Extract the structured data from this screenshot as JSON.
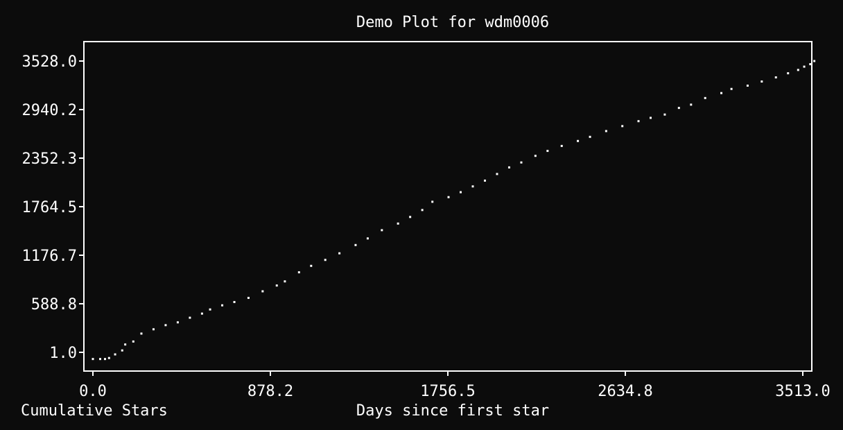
{
  "chart_data": {
    "type": "scatter",
    "title": "Demo Plot for wdm0006",
    "xlabel": "Days since first star",
    "ylabel": "Cumulative Stars",
    "x_ticks": [
      "0.0",
      "878.2",
      "1756.5",
      "2634.8",
      "3513.0"
    ],
    "y_ticks": [
      "1.0",
      "588.8",
      "1176.7",
      "1764.5",
      "2352.3",
      "2940.2",
      "3528.0"
    ],
    "xlim": [
      0,
      3513
    ],
    "ylim": [
      1,
      3528
    ],
    "grid": false,
    "points": [
      [
        0,
        -80
      ],
      [
        36,
        -80
      ],
      [
        60,
        -80
      ],
      [
        80,
        -68
      ],
      [
        110,
        -24
      ],
      [
        145,
        24
      ],
      [
        160,
        96
      ],
      [
        200,
        132
      ],
      [
        240,
        228
      ],
      [
        300,
        280
      ],
      [
        360,
        330
      ],
      [
        420,
        364
      ],
      [
        480,
        420
      ],
      [
        540,
        470
      ],
      [
        580,
        520
      ],
      [
        640,
        570
      ],
      [
        700,
        610
      ],
      [
        770,
        660
      ],
      [
        840,
        740
      ],
      [
        910,
        810
      ],
      [
        950,
        860
      ],
      [
        1020,
        970
      ],
      [
        1080,
        1048
      ],
      [
        1150,
        1120
      ],
      [
        1220,
        1200
      ],
      [
        1300,
        1300
      ],
      [
        1360,
        1380
      ],
      [
        1430,
        1480
      ],
      [
        1510,
        1560
      ],
      [
        1570,
        1640
      ],
      [
        1630,
        1724
      ],
      [
        1680,
        1824
      ],
      [
        1760,
        1880
      ],
      [
        1820,
        1940
      ],
      [
        1880,
        2010
      ],
      [
        1940,
        2080
      ],
      [
        2000,
        2160
      ],
      [
        2060,
        2240
      ],
      [
        2120,
        2300
      ],
      [
        2190,
        2380
      ],
      [
        2250,
        2440
      ],
      [
        2320,
        2500
      ],
      [
        2400,
        2560
      ],
      [
        2460,
        2610
      ],
      [
        2540,
        2680
      ],
      [
        2620,
        2740
      ],
      [
        2700,
        2800
      ],
      [
        2760,
        2840
      ],
      [
        2830,
        2880
      ],
      [
        2900,
        2960
      ],
      [
        2960,
        3000
      ],
      [
        3030,
        3080
      ],
      [
        3110,
        3140
      ],
      [
        3160,
        3190
      ],
      [
        3240,
        3230
      ],
      [
        3310,
        3280
      ],
      [
        3380,
        3330
      ],
      [
        3440,
        3380
      ],
      [
        3490,
        3420
      ],
      [
        3520,
        3460
      ],
      [
        3550,
        3490
      ],
      [
        3570,
        3528
      ]
    ]
  }
}
